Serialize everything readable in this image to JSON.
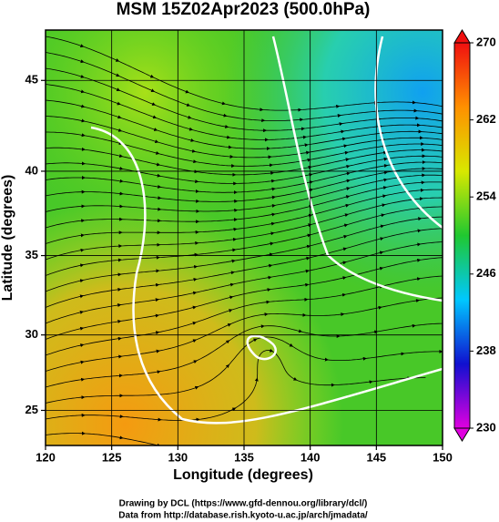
{
  "chart_data": {
    "type": "map",
    "title": "MSM 15Z02Apr2023 (500.0hPa)",
    "xlabel": "Longitude (degrees)",
    "ylabel": "Latitude  (degrees)",
    "xlim": [
      120,
      150
    ],
    "xticks": [
      120,
      125,
      130,
      135,
      140,
      145,
      150
    ],
    "ylim": [
      22.6,
      47.6
    ],
    "yticks": [
      25,
      30,
      35,
      40,
      45
    ],
    "projection": "mercator",
    "grid": true,
    "colorbar": {
      "lim": [
        230,
        270
      ],
      "ticks": [
        230,
        238,
        246,
        254,
        262,
        270
      ],
      "colors": [
        "#e000e0",
        "#1010d0",
        "#00c8ff",
        "#20c830",
        "#d8e800",
        "#ff9000",
        "#f01010"
      ]
    },
    "credits": [
      "Drawing by DCL (https://www.gfd-dennou.org/library/dcl/)",
      "Data from http://database.rish.kyoto-u.ac.jp/arch/jmadata/"
    ]
  }
}
